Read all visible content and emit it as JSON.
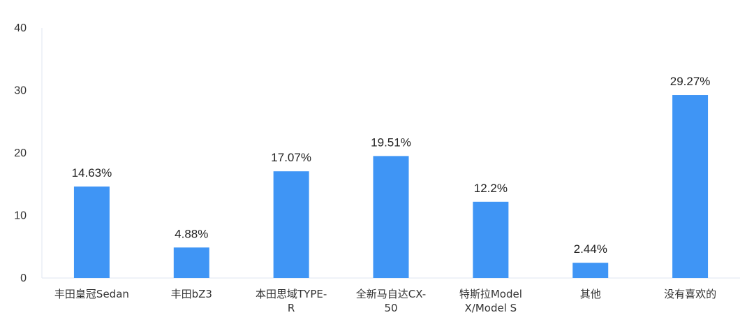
{
  "chart_data": {
    "type": "bar",
    "categories": [
      [
        "丰田皇冠Sedan"
      ],
      [
        "丰田bZ3"
      ],
      [
        "本田思域TYPE-",
        "R"
      ],
      [
        "全新马自达CX-",
        "50"
      ],
      [
        "特斯拉Model",
        "X/Model S"
      ],
      [
        "其他"
      ],
      [
        "没有喜欢的"
      ]
    ],
    "values": [
      14.63,
      4.88,
      17.07,
      19.51,
      12.2,
      2.44,
      29.27
    ],
    "data_labels": [
      "14.63%",
      "4.88%",
      "17.07%",
      "19.51%",
      "12.2%",
      "2.44%",
      "29.27%"
    ],
    "yticks": [
      0,
      10,
      20,
      30,
      40
    ],
    "ylim": [
      0,
      40
    ],
    "grid": false,
    "legend": "none",
    "bar_color": "#3f95f5",
    "axis_color": "#dfe6f0"
  }
}
